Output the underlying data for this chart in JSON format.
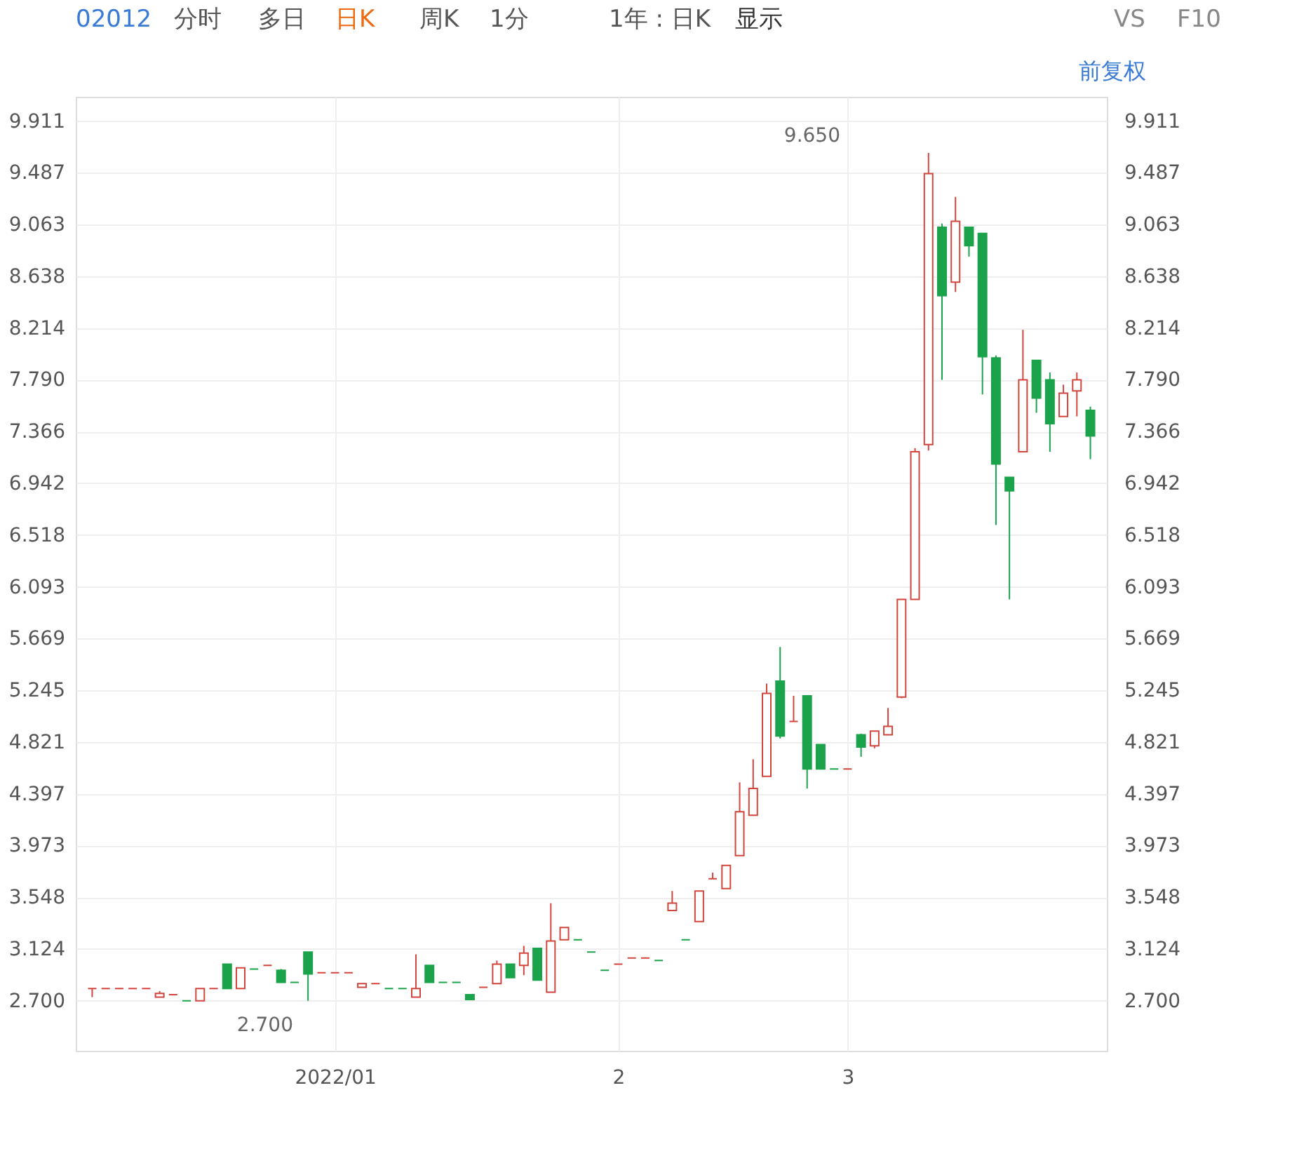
{
  "chart_data": {
    "type": "candlestick",
    "categories": [
      null,
      null,
      null,
      null,
      null,
      null,
      null,
      null,
      null,
      null,
      null,
      null,
      null,
      null,
      null,
      null,
      null,
      null,
      "2022/01",
      null,
      null,
      null,
      null,
      null,
      null,
      null,
      null,
      null,
      null,
      null,
      null,
      null,
      null,
      null,
      null,
      null,
      null,
      null,
      null,
      "2",
      null,
      null,
      null,
      null,
      null,
      null,
      null,
      null,
      null,
      null,
      null,
      null,
      null,
      null,
      null,
      null,
      "3",
      null,
      null,
      null,
      null,
      null,
      null,
      null,
      null,
      null,
      null,
      null,
      null,
      null,
      null,
      null,
      null,
      null,
      null
    ],
    "ohlc": [
      [
        2.8,
        2.8,
        2.73,
        2.8
      ],
      [
        2.8,
        2.8,
        2.8,
        2.8
      ],
      [
        2.8,
        2.8,
        2.8,
        2.8
      ],
      [
        2.8,
        2.8,
        2.8,
        2.8
      ],
      [
        2.8,
        2.8,
        2.8,
        2.8
      ],
      [
        2.73,
        2.78,
        2.73,
        2.76
      ],
      [
        2.75,
        2.75,
        2.75,
        2.75
      ],
      [
        2.7,
        2.7,
        2.7,
        2.7
      ],
      [
        2.7,
        2.8,
        2.7,
        2.8
      ],
      [
        2.8,
        2.8,
        2.8,
        2.8
      ],
      [
        3.0,
        3.0,
        2.8,
        2.8
      ],
      [
        2.8,
        2.97,
        2.8,
        2.97
      ],
      [
        2.96,
        2.96,
        2.96,
        2.96
      ],
      [
        2.99,
        2.99,
        2.99,
        2.99
      ],
      [
        2.95,
        2.96,
        2.85,
        2.85
      ],
      [
        2.85,
        2.85,
        2.85,
        2.85
      ],
      [
        3.1,
        3.1,
        2.7,
        2.92
      ],
      [
        2.93,
        2.93,
        2.93,
        2.93
      ],
      [
        2.93,
        2.93,
        2.93,
        2.93
      ],
      [
        2.93,
        2.93,
        2.93,
        2.93
      ],
      [
        2.81,
        2.84,
        2.81,
        2.84
      ],
      [
        2.84,
        2.84,
        2.84,
        2.84
      ],
      [
        2.8,
        2.8,
        2.8,
        2.8
      ],
      [
        2.8,
        2.8,
        2.8,
        2.8
      ],
      [
        2.73,
        3.08,
        2.73,
        2.8
      ],
      [
        2.99,
        2.99,
        2.85,
        2.85
      ],
      [
        2.85,
        2.85,
        2.85,
        2.85
      ],
      [
        2.85,
        2.85,
        2.85,
        2.85
      ],
      [
        2.75,
        2.75,
        2.71,
        2.71
      ],
      [
        2.81,
        2.81,
        2.81,
        2.81
      ],
      [
        2.84,
        3.03,
        2.84,
        3.0
      ],
      [
        3.0,
        3.0,
        2.89,
        2.89
      ],
      [
        2.99,
        3.15,
        2.91,
        3.09
      ],
      [
        3.13,
        3.13,
        2.87,
        2.87
      ],
      [
        2.77,
        3.5,
        2.77,
        3.19
      ],
      [
        3.2,
        3.3,
        3.2,
        3.3
      ],
      [
        3.2,
        3.2,
        3.2,
        3.2
      ],
      [
        3.1,
        3.1,
        3.1,
        3.1
      ],
      [
        2.95,
        2.95,
        2.95,
        2.95
      ],
      [
        3.0,
        3.0,
        3.0,
        3.0
      ],
      [
        3.05,
        3.05,
        3.05,
        3.05
      ],
      [
        3.05,
        3.05,
        3.05,
        3.05
      ],
      [
        3.03,
        3.03,
        3.03,
        3.03
      ],
      [
        3.44,
        3.6,
        3.44,
        3.5
      ],
      [
        3.2,
        3.2,
        3.2,
        3.2
      ],
      [
        3.35,
        3.6,
        3.35,
        3.6
      ],
      [
        3.7,
        3.75,
        3.7,
        3.7
      ],
      [
        3.62,
        3.81,
        3.62,
        3.81
      ],
      [
        3.89,
        4.49,
        3.89,
        4.25
      ],
      [
        4.22,
        4.68,
        4.22,
        4.44
      ],
      [
        4.54,
        5.3,
        4.54,
        5.22
      ],
      [
        5.32,
        5.6,
        4.85,
        4.87
      ],
      [
        4.99,
        5.2,
        4.99,
        4.99
      ],
      [
        5.2,
        5.2,
        4.44,
        4.6
      ],
      [
        4.8,
        4.8,
        4.6,
        4.6
      ],
      [
        4.6,
        4.6,
        4.6,
        4.6
      ],
      [
        4.6,
        4.6,
        4.6,
        4.6
      ],
      [
        4.88,
        4.89,
        4.7,
        4.78
      ],
      [
        4.79,
        4.91,
        4.77,
        4.91
      ],
      [
        4.88,
        5.1,
        4.88,
        4.95
      ],
      [
        5.19,
        5.99,
        5.18,
        5.99
      ],
      [
        5.99,
        7.23,
        5.99,
        7.2
      ],
      [
        7.26,
        9.65,
        7.21,
        9.48
      ],
      [
        9.04,
        9.07,
        7.79,
        8.48
      ],
      [
        8.59,
        9.29,
        8.51,
        9.09
      ],
      [
        9.04,
        9.04,
        8.8,
        8.89
      ],
      [
        8.99,
        8.99,
        7.67,
        7.98
      ],
      [
        7.97,
        7.99,
        6.6,
        7.1
      ],
      [
        6.99,
        6.99,
        5.99,
        6.88
      ],
      [
        7.2,
        8.2,
        7.2,
        7.79
      ],
      [
        7.95,
        7.95,
        7.52,
        7.64
      ],
      [
        7.79,
        7.85,
        7.2,
        7.43
      ],
      [
        7.49,
        7.75,
        7.49,
        7.68
      ],
      [
        7.7,
        7.85,
        7.49,
        7.79
      ],
      [
        7.54,
        7.57,
        7.14,
        7.33
      ]
    ],
    "colors": [
      "#d2453d",
      "#d2453d",
      "#d2453d",
      "#d2453d",
      "#d2453d",
      "#d2453d",
      "#d2453d",
      "#1aa34a",
      "#d2453d",
      "#d2453d",
      "#1aa34a",
      "#d2453d",
      "#1aa34a",
      "#d2453d",
      "#1aa34a",
      "#1aa34a",
      "#1aa34a",
      "#d2453d",
      "#d2453d",
      "#d2453d",
      "#d2453d",
      "#d2453d",
      "#1aa34a",
      "#1aa34a",
      "#d2453d",
      "#1aa34a",
      "#1aa34a",
      "#1aa34a",
      "#1aa34a",
      "#d2453d",
      "#d2453d",
      "#1aa34a",
      "#d2453d",
      "#1aa34a",
      "#d2453d",
      "#d2453d",
      "#1aa34a",
      "#1aa34a",
      "#1aa34a",
      "#d2453d",
      "#d2453d",
      "#d2453d",
      "#1aa34a",
      "#d2453d",
      "#1aa34a",
      "#d2453d",
      "#d2453d",
      "#d2453d",
      "#d2453d",
      "#d2453d",
      "#d2453d",
      "#1aa34a",
      "#d2453d",
      "#1aa34a",
      "#1aa34a",
      "#1aa34a",
      "#d2453d",
      "#1aa34a",
      "#d2453d",
      "#d2453d",
      "#d2453d",
      "#d2453d",
      "#d2453d",
      "#1aa34a",
      "#d2453d",
      "#1aa34a",
      "#1aa34a",
      "#1aa34a",
      "#1aa34a",
      "#d2453d",
      "#1aa34a",
      "#1aa34a",
      "#d2453d",
      "#d2453d",
      "#1aa34a"
    ],
    "ylim": [
      2.29,
      10.11
    ],
    "yticks": [
      {
        "value": 2.7,
        "label": "2.700"
      },
      {
        "value": 3.124,
        "label": "3.124"
      },
      {
        "value": 3.548,
        "label": "3.548"
      },
      {
        "value": 3.973,
        "label": "3.973"
      },
      {
        "value": 4.397,
        "label": "4.397"
      },
      {
        "value": 4.821,
        "label": "4.821"
      },
      {
        "value": 5.245,
        "label": "5.245"
      },
      {
        "value": 5.669,
        "label": "5.669"
      },
      {
        "value": 6.093,
        "label": "6.093"
      },
      {
        "value": 6.518,
        "label": "6.518"
      },
      {
        "value": 6.942,
        "label": "6.942"
      },
      {
        "value": 7.366,
        "label": "7.366"
      },
      {
        "value": 7.79,
        "label": "7.790"
      },
      {
        "value": 8.214,
        "label": "8.214"
      },
      {
        "value": 8.638,
        "label": "8.638"
      },
      {
        "value": 9.063,
        "label": "9.063"
      },
      {
        "value": 9.487,
        "label": "9.487"
      },
      {
        "value": 9.911,
        "label": "9.911"
      }
    ],
    "y2lim": [
      2.29,
      10.11
    ],
    "y2ticks": [
      {
        "value": 2.7,
        "label": "2.700"
      },
      {
        "value": 3.124,
        "label": "3.124"
      },
      {
        "value": 3.548,
        "label": "3.548"
      },
      {
        "value": 3.973,
        "label": "3.973"
      },
      {
        "value": 4.397,
        "label": "4.397"
      },
      {
        "value": 4.821,
        "label": "4.821"
      },
      {
        "value": 5.245,
        "label": "5.245"
      },
      {
        "value": 5.669,
        "label": "5.669"
      },
      {
        "value": 6.093,
        "label": "6.093"
      },
      {
        "value": 6.518,
        "label": "6.518"
      },
      {
        "value": 6.942,
        "label": "6.942"
      },
      {
        "value": 7.366,
        "label": "7.366"
      },
      {
        "value": 7.79,
        "label": "7.790"
      },
      {
        "value": 8.214,
        "label": "8.214"
      },
      {
        "value": 8.638,
        "label": "8.638"
      },
      {
        "value": 9.063,
        "label": "9.063"
      },
      {
        "value": 9.487,
        "label": "9.487"
      },
      {
        "value": 9.911,
        "label": "9.911"
      }
    ],
    "grid": true,
    "annotations": [
      "9.650",
      "2.700",
      "02012",
      "分时",
      "多日",
      "日K",
      "周K",
      "1分",
      "1年 : 日K",
      "显示",
      "VS",
      "F10",
      "前复权"
    ]
  }
}
